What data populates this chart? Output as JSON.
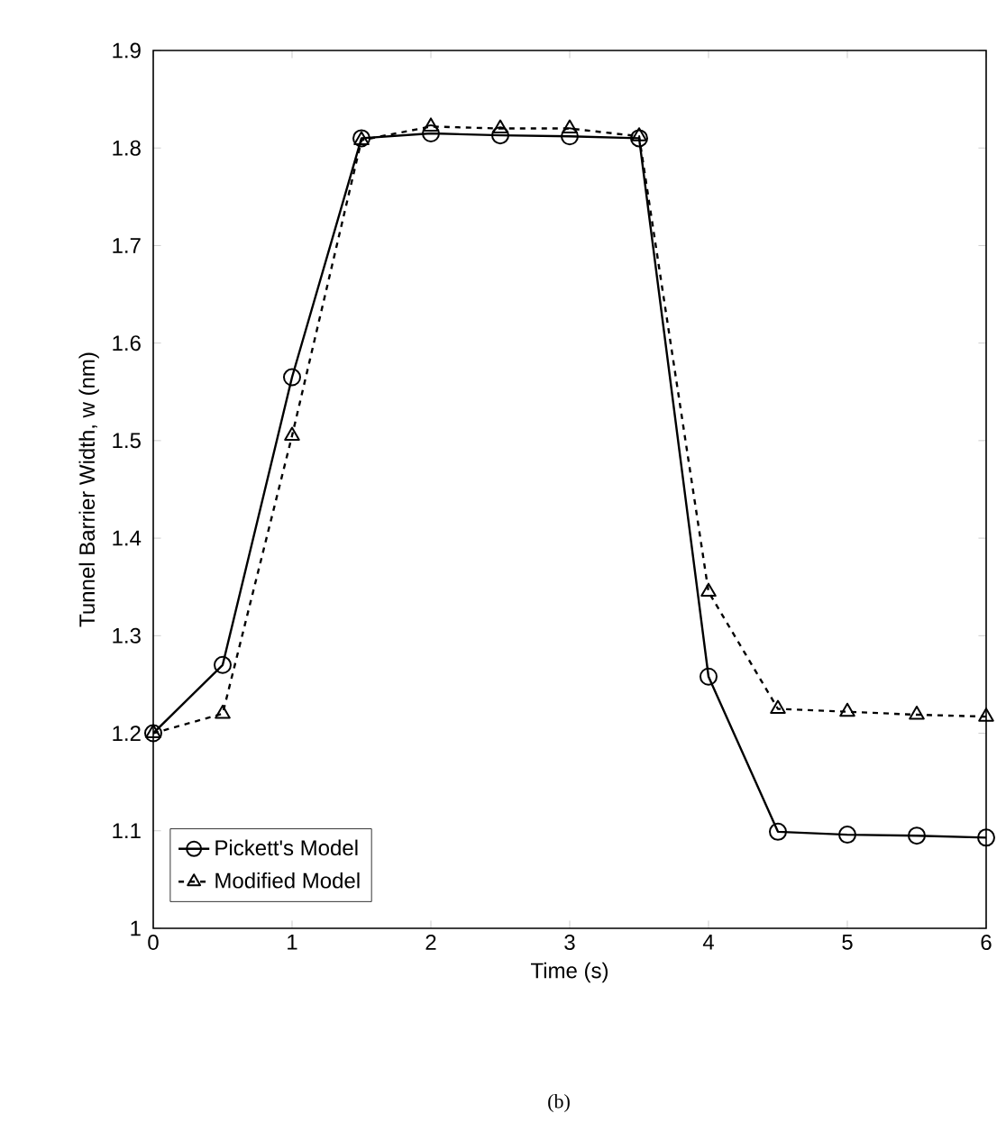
{
  "chart_data": {
    "type": "line",
    "xlabel": "Time (s)",
    "ylabel": "Tunnel Barrier Width, w (nm)",
    "x": [
      0,
      0.5,
      1,
      1.5,
      2,
      2.5,
      3,
      3.5,
      4,
      4.5,
      5,
      5.5,
      6
    ],
    "series": [
      {
        "name": "Pickett's Model",
        "color": "#000000",
        "marker": "circle",
        "line_style": "solid",
        "values": [
          1.2,
          1.27,
          1.565,
          1.81,
          1.815,
          1.813,
          1.812,
          1.81,
          1.258,
          1.099,
          1.096,
          1.095,
          1.093
        ]
      },
      {
        "name": "Modified Model",
        "color": "#000000",
        "marker": "triangle",
        "line_style": "dashed",
        "values": [
          1.2,
          1.22,
          1.505,
          1.808,
          1.822,
          1.82,
          1.82,
          1.812,
          1.345,
          1.225,
          1.222,
          1.219,
          1.217
        ]
      }
    ],
    "xlim": [
      0,
      6
    ],
    "ylim": [
      1,
      1.9
    ],
    "xticks": [
      0,
      1,
      2,
      3,
      4,
      5,
      6
    ],
    "yticks": [
      1,
      1.1,
      1.2,
      1.3,
      1.4,
      1.5,
      1.6,
      1.7,
      1.8,
      1.9
    ],
    "legend": "bottom left",
    "grid": false,
    "annotations": [
      "(b)"
    ]
  }
}
